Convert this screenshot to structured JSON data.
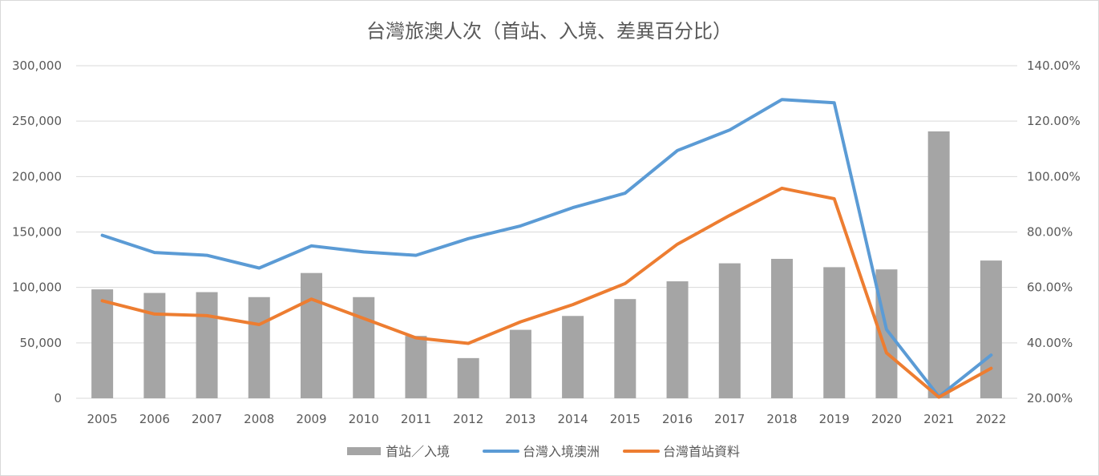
{
  "chart_data": {
    "type": "bar",
    "title": "台灣旅澳人次（首站、入境、差異百分比）",
    "categories": [
      "2005",
      "2006",
      "2007",
      "2008",
      "2009",
      "2010",
      "2011",
      "2012",
      "2013",
      "2014",
      "2015",
      "2016",
      "2017",
      "2018",
      "2019",
      "2020",
      "2021",
      "2022"
    ],
    "y_left": {
      "range": [
        0,
        300000
      ],
      "ticks": [
        "0",
        "50,000",
        "100,000",
        "150,000",
        "200,000",
        "250,000",
        "300,000"
      ]
    },
    "y_right": {
      "range": [
        0.2,
        1.4
      ],
      "ticks": [
        "20.00%",
        "40.00%",
        "60.00%",
        "80.00%",
        "100.00%",
        "120.00%",
        "140.00%"
      ]
    },
    "grid": true,
    "legend_position": "bottom",
    "series": [
      {
        "name": "首站／入境",
        "type": "bar",
        "axis": "right",
        "color": "#a5a5a5",
        "values": [
          0.593,
          0.58,
          0.583,
          0.565,
          0.652,
          0.565,
          0.425,
          0.345,
          0.447,
          0.497,
          0.558,
          0.622,
          0.687,
          0.703,
          0.673,
          0.665,
          1.163,
          0.697
        ]
      },
      {
        "name": "台灣入境澳洲",
        "type": "line",
        "axis": "left",
        "color": "#5b9bd5",
        "values": [
          147000,
          131500,
          129000,
          117500,
          137500,
          132000,
          129000,
          144000,
          155500,
          172000,
          185000,
          223500,
          242000,
          269500,
          266500,
          62000,
          1500,
          39000
        ]
      },
      {
        "name": "台灣首站資料",
        "type": "line",
        "axis": "left",
        "color": "#ed7d31",
        "values": [
          88000,
          76000,
          74500,
          66500,
          89500,
          72000,
          54500,
          49500,
          69000,
          84500,
          103500,
          139000,
          165000,
          189500,
          180000,
          41000,
          1000,
          27000
        ]
      }
    ]
  }
}
